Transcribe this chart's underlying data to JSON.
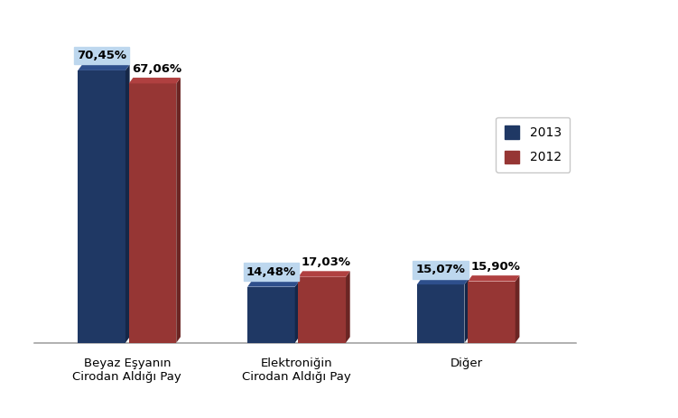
{
  "categories": [
    "Beyaz Eşyanın\nCirodan Aldığı Pay",
    "Elektroniğin\nCirodan Aldığı Pay",
    "Diğer"
  ],
  "values_2013": [
    70.45,
    14.48,
    15.07
  ],
  "values_2012": [
    67.06,
    17.03,
    15.9
  ],
  "labels_2013": [
    "70,45%",
    "14,48%",
    "15,07%"
  ],
  "labels_2012": [
    "67,06%",
    "17,03%",
    "15,90%"
  ],
  "color_2013": "#1F3864",
  "color_2012": "#963634",
  "color_2013_side": "#152748",
  "color_2012_side": "#6B2523",
  "color_2013_top": "#2E4F8C",
  "color_2012_top": "#B04040",
  "label_bg_color": "#BDD7EE",
  "bar_width": 0.28,
  "depth": 0.08,
  "ylim": [
    0,
    80
  ],
  "legend_labels": [
    "2013",
    "2012"
  ],
  "background_color": "#FFFFFF",
  "label_fontsize": 9.5,
  "tick_fontsize": 9.5
}
